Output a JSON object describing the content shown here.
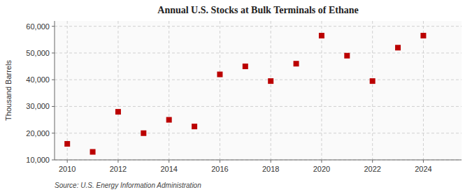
{
  "chart_data": {
    "type": "scatter",
    "title": "Annual U.S. Stocks at Bulk Terminals of Ethane",
    "ylabel": "Thousand Barrels",
    "source": "Source: U.S. Energy Information Administration",
    "x": [
      2010,
      2011,
      2012,
      2013,
      2014,
      2015,
      2016,
      2017,
      2018,
      2019,
      2020,
      2021,
      2022,
      2023,
      2024
    ],
    "values": [
      16000,
      13000,
      28000,
      20000,
      25000,
      22500,
      42000,
      45000,
      39500,
      46000,
      56500,
      49000,
      39500,
      52000,
      56500
    ],
    "color": "#bb0000",
    "marker": "square",
    "xlim": [
      2009.5,
      2025.5
    ],
    "ylim": [
      10000,
      62000
    ],
    "xticks": [
      2010,
      2012,
      2014,
      2016,
      2018,
      2020,
      2022,
      2024
    ],
    "yticks": [
      {
        "value": 10000,
        "label": "10,000"
      },
      {
        "value": 20000,
        "label": "20,000"
      },
      {
        "value": 30000,
        "label": "30,000"
      },
      {
        "value": 40000,
        "label": "40,000"
      },
      {
        "value": 50000,
        "label": "50,000"
      },
      {
        "value": 60000,
        "label": "60,000"
      }
    ],
    "grid": true
  }
}
